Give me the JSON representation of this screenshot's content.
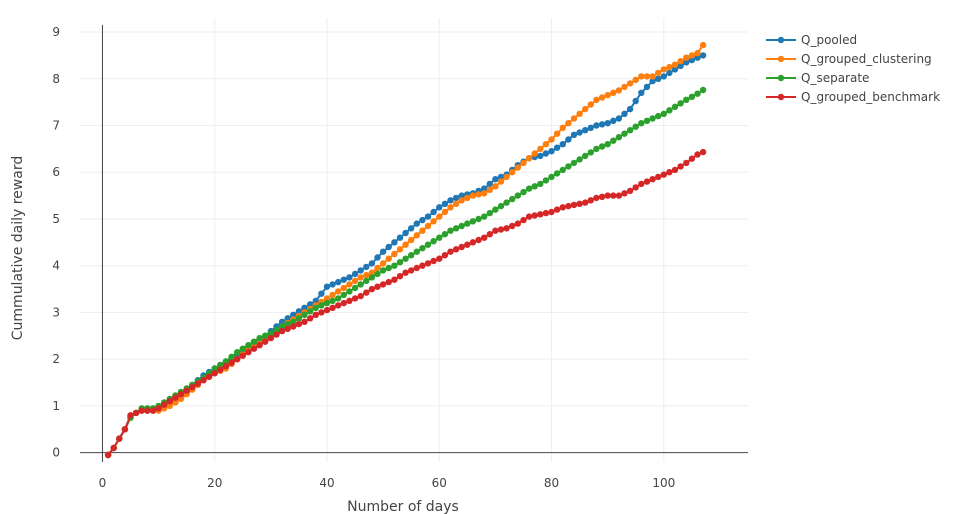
{
  "chart_data": {
    "type": "line",
    "xlabel": "Number of days",
    "ylabel": "Cummulative daily reward",
    "xlim": [
      -4,
      115
    ],
    "ylim": [
      -0.2,
      9.3
    ],
    "xticks": [
      0,
      20,
      40,
      60,
      80,
      100
    ],
    "yticks": [
      0,
      1,
      2,
      3,
      4,
      5,
      6,
      7,
      8,
      9
    ],
    "grid": true,
    "legend_position": "top-right",
    "series": [
      {
        "name": "Q_pooled",
        "color": "#1f77b4",
        "points": [
          [
            1,
            -0.05
          ],
          [
            2,
            0.1
          ],
          [
            3,
            0.3
          ],
          [
            4,
            0.5
          ],
          [
            5,
            0.75
          ],
          [
            6,
            0.85
          ],
          [
            7,
            0.9
          ],
          [
            8,
            0.9
          ],
          [
            9,
            0.9
          ],
          [
            10,
            0.95
          ],
          [
            12,
            1.05
          ],
          [
            14,
            1.25
          ],
          [
            16,
            1.45
          ],
          [
            18,
            1.65
          ],
          [
            20,
            1.8
          ],
          [
            22,
            1.95
          ],
          [
            24,
            2.1
          ],
          [
            26,
            2.25
          ],
          [
            28,
            2.4
          ],
          [
            30,
            2.6
          ],
          [
            32,
            2.8
          ],
          [
            34,
            2.95
          ],
          [
            36,
            3.1
          ],
          [
            38,
            3.25
          ],
          [
            39,
            3.4
          ],
          [
            40,
            3.55
          ],
          [
            42,
            3.65
          ],
          [
            44,
            3.75
          ],
          [
            46,
            3.9
          ],
          [
            48,
            4.05
          ],
          [
            50,
            4.3
          ],
          [
            52,
            4.5
          ],
          [
            54,
            4.7
          ],
          [
            56,
            4.9
          ],
          [
            58,
            5.05
          ],
          [
            60,
            5.25
          ],
          [
            62,
            5.4
          ],
          [
            64,
            5.5
          ],
          [
            66,
            5.55
          ],
          [
            68,
            5.65
          ],
          [
            70,
            5.85
          ],
          [
            72,
            5.95
          ],
          [
            74,
            6.15
          ],
          [
            76,
            6.3
          ],
          [
            78,
            6.35
          ],
          [
            80,
            6.45
          ],
          [
            82,
            6.6
          ],
          [
            84,
            6.8
          ],
          [
            86,
            6.9
          ],
          [
            88,
            7.0
          ],
          [
            90,
            7.05
          ],
          [
            92,
            7.15
          ],
          [
            94,
            7.35
          ],
          [
            96,
            7.7
          ],
          [
            98,
            7.95
          ],
          [
            100,
            8.05
          ],
          [
            102,
            8.2
          ],
          [
            104,
            8.35
          ],
          [
            106,
            8.45
          ],
          [
            107,
            8.5
          ]
        ]
      },
      {
        "name": "Q_grouped_clustering",
        "color": "#ff7f0e",
        "points": [
          [
            1,
            -0.05
          ],
          [
            2,
            0.1
          ],
          [
            3,
            0.3
          ],
          [
            4,
            0.5
          ],
          [
            5,
            0.75
          ],
          [
            6,
            0.85
          ],
          [
            7,
            0.9
          ],
          [
            8,
            0.9
          ],
          [
            9,
            0.9
          ],
          [
            10,
            0.9
          ],
          [
            12,
            1.0
          ],
          [
            14,
            1.15
          ],
          [
            16,
            1.35
          ],
          [
            18,
            1.55
          ],
          [
            20,
            1.7
          ],
          [
            22,
            1.8
          ],
          [
            24,
            2.0
          ],
          [
            26,
            2.2
          ],
          [
            28,
            2.35
          ],
          [
            30,
            2.5
          ],
          [
            32,
            2.7
          ],
          [
            34,
            2.85
          ],
          [
            36,
            3.0
          ],
          [
            38,
            3.15
          ],
          [
            40,
            3.3
          ],
          [
            42,
            3.45
          ],
          [
            44,
            3.6
          ],
          [
            46,
            3.75
          ],
          [
            48,
            3.85
          ],
          [
            50,
            4.05
          ],
          [
            52,
            4.25
          ],
          [
            54,
            4.45
          ],
          [
            56,
            4.65
          ],
          [
            58,
            4.85
          ],
          [
            60,
            5.05
          ],
          [
            62,
            5.25
          ],
          [
            64,
            5.4
          ],
          [
            66,
            5.5
          ],
          [
            68,
            5.55
          ],
          [
            70,
            5.7
          ],
          [
            72,
            5.9
          ],
          [
            74,
            6.1
          ],
          [
            76,
            6.3
          ],
          [
            78,
            6.5
          ],
          [
            80,
            6.7
          ],
          [
            82,
            6.95
          ],
          [
            84,
            7.15
          ],
          [
            86,
            7.35
          ],
          [
            88,
            7.55
          ],
          [
            90,
            7.65
          ],
          [
            92,
            7.75
          ],
          [
            94,
            7.9
          ],
          [
            96,
            8.05
          ],
          [
            98,
            8.05
          ],
          [
            100,
            8.2
          ],
          [
            102,
            8.3
          ],
          [
            104,
            8.45
          ],
          [
            106,
            8.55
          ],
          [
            107,
            8.72
          ]
        ]
      },
      {
        "name": "Q_separate",
        "color": "#2ca02c",
        "points": [
          [
            1,
            -0.05
          ],
          [
            2,
            0.1
          ],
          [
            3,
            0.3
          ],
          [
            4,
            0.5
          ],
          [
            5,
            0.75
          ],
          [
            6,
            0.85
          ],
          [
            7,
            0.95
          ],
          [
            8,
            0.95
          ],
          [
            9,
            0.95
          ],
          [
            10,
            1.0
          ],
          [
            12,
            1.15
          ],
          [
            14,
            1.3
          ],
          [
            16,
            1.45
          ],
          [
            18,
            1.6
          ],
          [
            20,
            1.8
          ],
          [
            22,
            1.95
          ],
          [
            24,
            2.15
          ],
          [
            26,
            2.3
          ],
          [
            28,
            2.45
          ],
          [
            30,
            2.55
          ],
          [
            32,
            2.7
          ],
          [
            34,
            2.8
          ],
          [
            36,
            2.95
          ],
          [
            38,
            3.1
          ],
          [
            40,
            3.2
          ],
          [
            42,
            3.3
          ],
          [
            44,
            3.45
          ],
          [
            46,
            3.6
          ],
          [
            48,
            3.75
          ],
          [
            50,
            3.9
          ],
          [
            52,
            4.0
          ],
          [
            54,
            4.15
          ],
          [
            56,
            4.3
          ],
          [
            58,
            4.45
          ],
          [
            60,
            4.6
          ],
          [
            62,
            4.75
          ],
          [
            64,
            4.85
          ],
          [
            66,
            4.95
          ],
          [
            68,
            5.05
          ],
          [
            70,
            5.2
          ],
          [
            72,
            5.35
          ],
          [
            74,
            5.5
          ],
          [
            76,
            5.65
          ],
          [
            78,
            5.75
          ],
          [
            80,
            5.9
          ],
          [
            82,
            6.05
          ],
          [
            84,
            6.2
          ],
          [
            86,
            6.35
          ],
          [
            88,
            6.5
          ],
          [
            90,
            6.6
          ],
          [
            92,
            6.75
          ],
          [
            94,
            6.9
          ],
          [
            96,
            7.05
          ],
          [
            98,
            7.15
          ],
          [
            100,
            7.25
          ],
          [
            102,
            7.4
          ],
          [
            104,
            7.55
          ],
          [
            106,
            7.68
          ],
          [
            107,
            7.76
          ]
        ]
      },
      {
        "name": "Q_grouped_benchmark",
        "color": "#d62728",
        "points": [
          [
            1,
            -0.05
          ],
          [
            2,
            0.1
          ],
          [
            3,
            0.3
          ],
          [
            4,
            0.5
          ],
          [
            5,
            0.8
          ],
          [
            6,
            0.85
          ],
          [
            7,
            0.9
          ],
          [
            8,
            0.9
          ],
          [
            9,
            0.9
          ],
          [
            10,
            0.95
          ],
          [
            12,
            1.1
          ],
          [
            14,
            1.25
          ],
          [
            16,
            1.4
          ],
          [
            18,
            1.55
          ],
          [
            20,
            1.7
          ],
          [
            22,
            1.85
          ],
          [
            24,
            2.0
          ],
          [
            26,
            2.15
          ],
          [
            28,
            2.3
          ],
          [
            30,
            2.45
          ],
          [
            32,
            2.6
          ],
          [
            34,
            2.7
          ],
          [
            36,
            2.8
          ],
          [
            38,
            2.95
          ],
          [
            40,
            3.05
          ],
          [
            42,
            3.15
          ],
          [
            44,
            3.25
          ],
          [
            46,
            3.35
          ],
          [
            48,
            3.5
          ],
          [
            50,
            3.6
          ],
          [
            52,
            3.7
          ],
          [
            54,
            3.85
          ],
          [
            56,
            3.95
          ],
          [
            58,
            4.05
          ],
          [
            60,
            4.15
          ],
          [
            62,
            4.3
          ],
          [
            64,
            4.4
          ],
          [
            66,
            4.5
          ],
          [
            68,
            4.6
          ],
          [
            70,
            4.75
          ],
          [
            72,
            4.8
          ],
          [
            74,
            4.9
          ],
          [
            76,
            5.05
          ],
          [
            78,
            5.1
          ],
          [
            80,
            5.15
          ],
          [
            82,
            5.25
          ],
          [
            84,
            5.3
          ],
          [
            86,
            5.35
          ],
          [
            88,
            5.45
          ],
          [
            90,
            5.5
          ],
          [
            92,
            5.5
          ],
          [
            94,
            5.6
          ],
          [
            96,
            5.75
          ],
          [
            98,
            5.85
          ],
          [
            100,
            5.95
          ],
          [
            102,
            6.05
          ],
          [
            104,
            6.2
          ],
          [
            106,
            6.38
          ],
          [
            107,
            6.43
          ]
        ]
      }
    ]
  }
}
